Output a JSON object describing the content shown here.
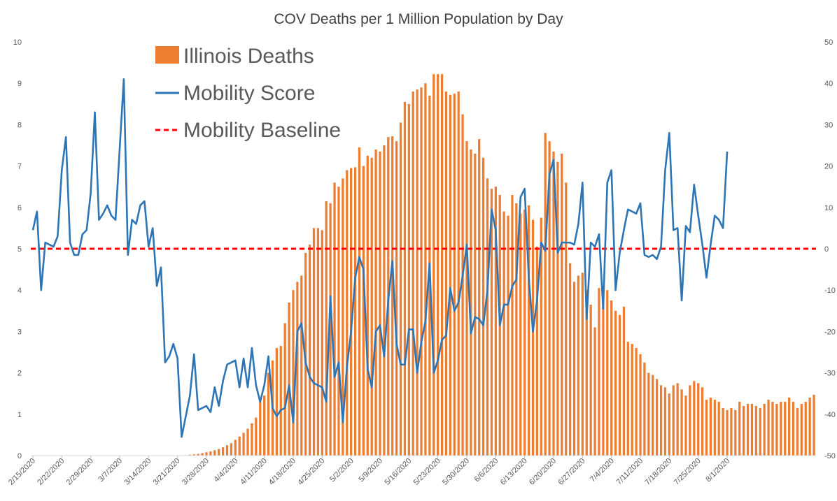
{
  "chart_data": {
    "type": "bar",
    "title": "COV Deaths per 1 Million Population by Day",
    "xlabel": "",
    "ylabel": "",
    "y_left_lim": [
      0,
      10
    ],
    "y_left_ticks": [
      0,
      1,
      2,
      3,
      4,
      5,
      6,
      7,
      8,
      9,
      10
    ],
    "y_right_lim": [
      -50,
      50
    ],
    "y_right_ticks": [
      -50,
      -40,
      -30,
      -20,
      -10,
      0,
      10,
      20,
      30,
      40,
      50
    ],
    "grid": false,
    "legend_position": "top-left",
    "x_tick_labels": [
      "2/15/2020",
      "2/22/2020",
      "2/29/2020",
      "3/7/2020",
      "3/14/2020",
      "3/21/2020",
      "3/28/2020",
      "4/4/2020",
      "4/11/2020",
      "4/18/2020",
      "4/25/2020",
      "5/2/2020",
      "5/9/2020",
      "5/16/2020",
      "5/23/2020",
      "5/30/2020",
      "6/6/2020",
      "6/13/2020",
      "6/20/2020",
      "6/27/2020",
      "7/4/2020",
      "7/11/2020",
      "7/18/2020",
      "7/25/2020",
      "8/1/2020"
    ],
    "start_date": "2/15/2020",
    "series": [
      {
        "name": "Illinois Deaths",
        "type": "bar",
        "axis": "left",
        "color": "#ED7D31",
        "values": [
          0,
          0,
          0,
          0,
          0,
          0,
          0,
          0,
          0,
          0,
          0,
          0,
          0,
          0,
          0,
          0,
          0,
          0,
          0,
          0,
          0,
          0,
          0,
          0,
          0,
          0,
          0,
          0,
          0,
          0,
          0,
          0,
          0,
          0,
          0,
          0,
          0,
          0.01,
          0.02,
          0.03,
          0.04,
          0.06,
          0.08,
          0.1,
          0.13,
          0.16,
          0.2,
          0.25,
          0.3,
          0.38,
          0.46,
          0.55,
          0.65,
          0.78,
          0.92,
          1.3,
          1.45,
          2.0,
          2.3,
          2.6,
          2.65,
          3.2,
          3.7,
          4.0,
          4.2,
          4.35,
          4.9,
          5.1,
          5.5,
          5.5,
          5.45,
          6.15,
          6.1,
          6.6,
          6.5,
          6.7,
          6.9,
          6.95,
          6.97,
          7.45,
          7.0,
          7.25,
          7.2,
          7.4,
          7.35,
          7.5,
          7.7,
          7.72,
          7.6,
          8.05,
          8.55,
          8.5,
          8.8,
          8.85,
          8.9,
          9.0,
          8.7,
          9.22,
          9.22,
          9.22,
          8.8,
          8.72,
          8.75,
          8.8,
          8.25,
          7.6,
          7.4,
          7.3,
          7.65,
          7.2,
          6.7,
          6.45,
          6.5,
          6.3,
          5.9,
          5.8,
          6.3,
          6.1,
          5.85,
          5.95,
          6.05,
          5.7,
          5.05,
          5.75,
          7.8,
          7.6,
          7.35,
          7.1,
          7.3,
          6.6,
          4.65,
          4.2,
          4.35,
          4.42,
          4.0,
          3.65,
          3.1,
          4.05,
          4.1,
          4.0,
          3.75,
          3.5,
          3.4,
          3.6,
          2.75,
          2.7,
          2.6,
          2.45,
          2.25,
          2.0,
          1.95,
          1.85,
          1.7,
          1.65,
          1.5,
          1.7,
          1.75,
          1.6,
          1.45,
          1.7,
          1.8,
          1.75,
          1.65,
          1.35,
          1.4,
          1.35,
          1.3,
          1.15,
          1.1,
          1.15,
          1.1,
          1.3,
          1.2,
          1.25,
          1.25,
          1.2,
          1.15,
          1.25,
          1.35,
          1.3,
          1.25,
          1.3,
          1.3,
          1.4,
          1.3,
          1.15,
          1.25,
          1.3,
          1.4,
          1.47
        ]
      },
      {
        "name": "Mobility Score",
        "type": "line",
        "axis": "right",
        "color": "#2E75B6",
        "values": [
          4.5,
          9,
          -10,
          1.5,
          1,
          0.5,
          3,
          19,
          27,
          1.5,
          -1.5,
          -1.5,
          3.5,
          4.5,
          13.5,
          33,
          7,
          8.5,
          10.5,
          8,
          7,
          24,
          41,
          -1.5,
          7,
          6,
          10.5,
          11.5,
          0.5,
          5,
          -9,
          -4.5,
          -27.5,
          -26,
          -23,
          -26.5,
          -45.5,
          -40.5,
          -35.5,
          -25.5,
          -39,
          -38.5,
          -38,
          -39.5,
          -33.5,
          -38,
          -32,
          -28,
          -27.5,
          -27,
          -33.5,
          -26.5,
          -33.5,
          -24,
          -33,
          -37,
          -33,
          -26,
          -38.5,
          -40.5,
          -39,
          -38.5,
          -33,
          -42,
          -20,
          -18,
          -27.5,
          -31,
          -32.5,
          -33,
          -33.5,
          -37,
          -11.5,
          -31,
          -27.5,
          -42,
          -28.5,
          -20,
          -7,
          -2,
          -5,
          -29,
          -33.5,
          -20,
          -18.5,
          -26,
          -12.5,
          -3,
          -23,
          -28,
          -28,
          -19.5,
          -19.5,
          -30,
          -22.5,
          -17.5,
          -3.5,
          -30,
          -27,
          -22,
          -21,
          -9.5,
          -15,
          -13,
          -6.5,
          1,
          -20.5,
          -16.5,
          -17,
          -18.5,
          -10,
          9.5,
          4.5,
          -18.5,
          -13.5,
          -13.5,
          -9,
          -7.5,
          12.5,
          14.5,
          -7,
          -20,
          -12.5,
          1.5,
          -0.5,
          18,
          21.5,
          -1,
          1.5,
          1.5,
          1.5,
          1,
          6,
          16,
          -17,
          1.5,
          0.5,
          3.5,
          -14.5,
          16,
          19,
          -10,
          -1,
          4.5,
          9.5,
          9,
          8.5,
          11,
          -1.5,
          -2,
          -1.5,
          -2.5,
          0.5,
          19,
          28,
          4.5,
          5,
          -12.5,
          5.5,
          4,
          15.5,
          8,
          1,
          -7,
          1,
          8,
          7,
          5,
          23.5
        ]
      },
      {
        "name": "Mobility Baseline",
        "type": "line",
        "axis": "right",
        "style": "dashed",
        "color": "#FF0000",
        "values": [
          0
        ]
      }
    ]
  }
}
